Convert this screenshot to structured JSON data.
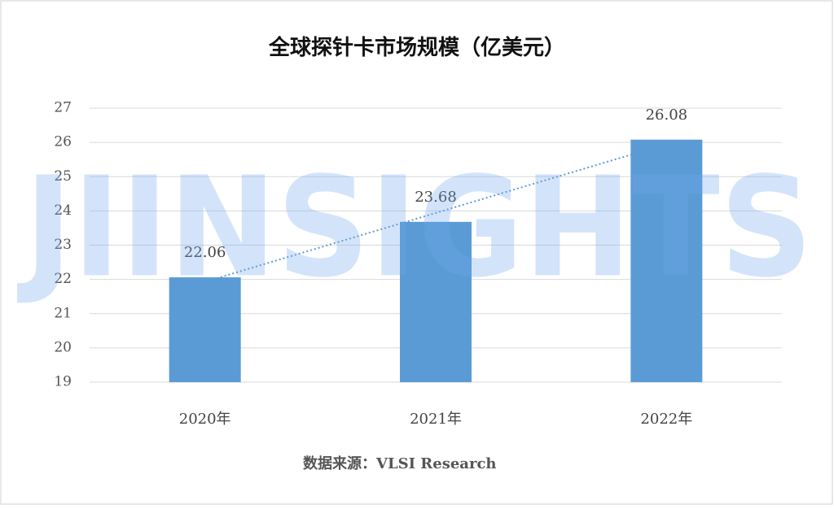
{
  "chart_data": {
    "type": "bar",
    "title": "全球探针卡市场规模（亿美元）",
    "categories": [
      "2020年",
      "2021年",
      "2022年"
    ],
    "values": [
      22.06,
      23.68,
      26.08
    ],
    "color": "#5b9bd5",
    "ylim": [
      19,
      27
    ],
    "yticks": [
      19,
      20,
      21,
      22,
      23,
      24,
      25,
      26,
      27
    ],
    "grid": true,
    "trendline": true,
    "source": "数据来源：VLSI Research",
    "watermark": "JIINSIGHTS"
  }
}
